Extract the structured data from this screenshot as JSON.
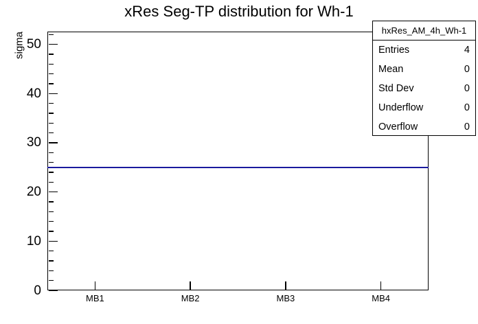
{
  "chart_data": {
    "type": "line",
    "title": "xRes Seg-TP distribution for Wh-1",
    "ylabel": "sigma",
    "xlabel": "",
    "categories": [
      "MB1",
      "MB2",
      "MB3",
      "MB4"
    ],
    "series": [
      {
        "name": "hxRes_AM_4h_Wh-1",
        "values": [
          25,
          25,
          25,
          25
        ]
      }
    ],
    "ylim": [
      0,
      52.6
    ],
    "y_major_step": 10,
    "y_minor_step": 2,
    "grid": false,
    "legend_position": "none",
    "line_color": "#1a1a9e",
    "frame_color": "#000000",
    "background_color": "#ffffff"
  },
  "stats_box": {
    "header": "hxRes_AM_4h_Wh-1",
    "rows": [
      {
        "label": "Entries",
        "value": "4"
      },
      {
        "label": "Mean",
        "value": "0"
      },
      {
        "label": "Std Dev",
        "value": "0"
      },
      {
        "label": "Underflow",
        "value": "0"
      },
      {
        "label": "Overflow",
        "value": "0"
      }
    ]
  }
}
